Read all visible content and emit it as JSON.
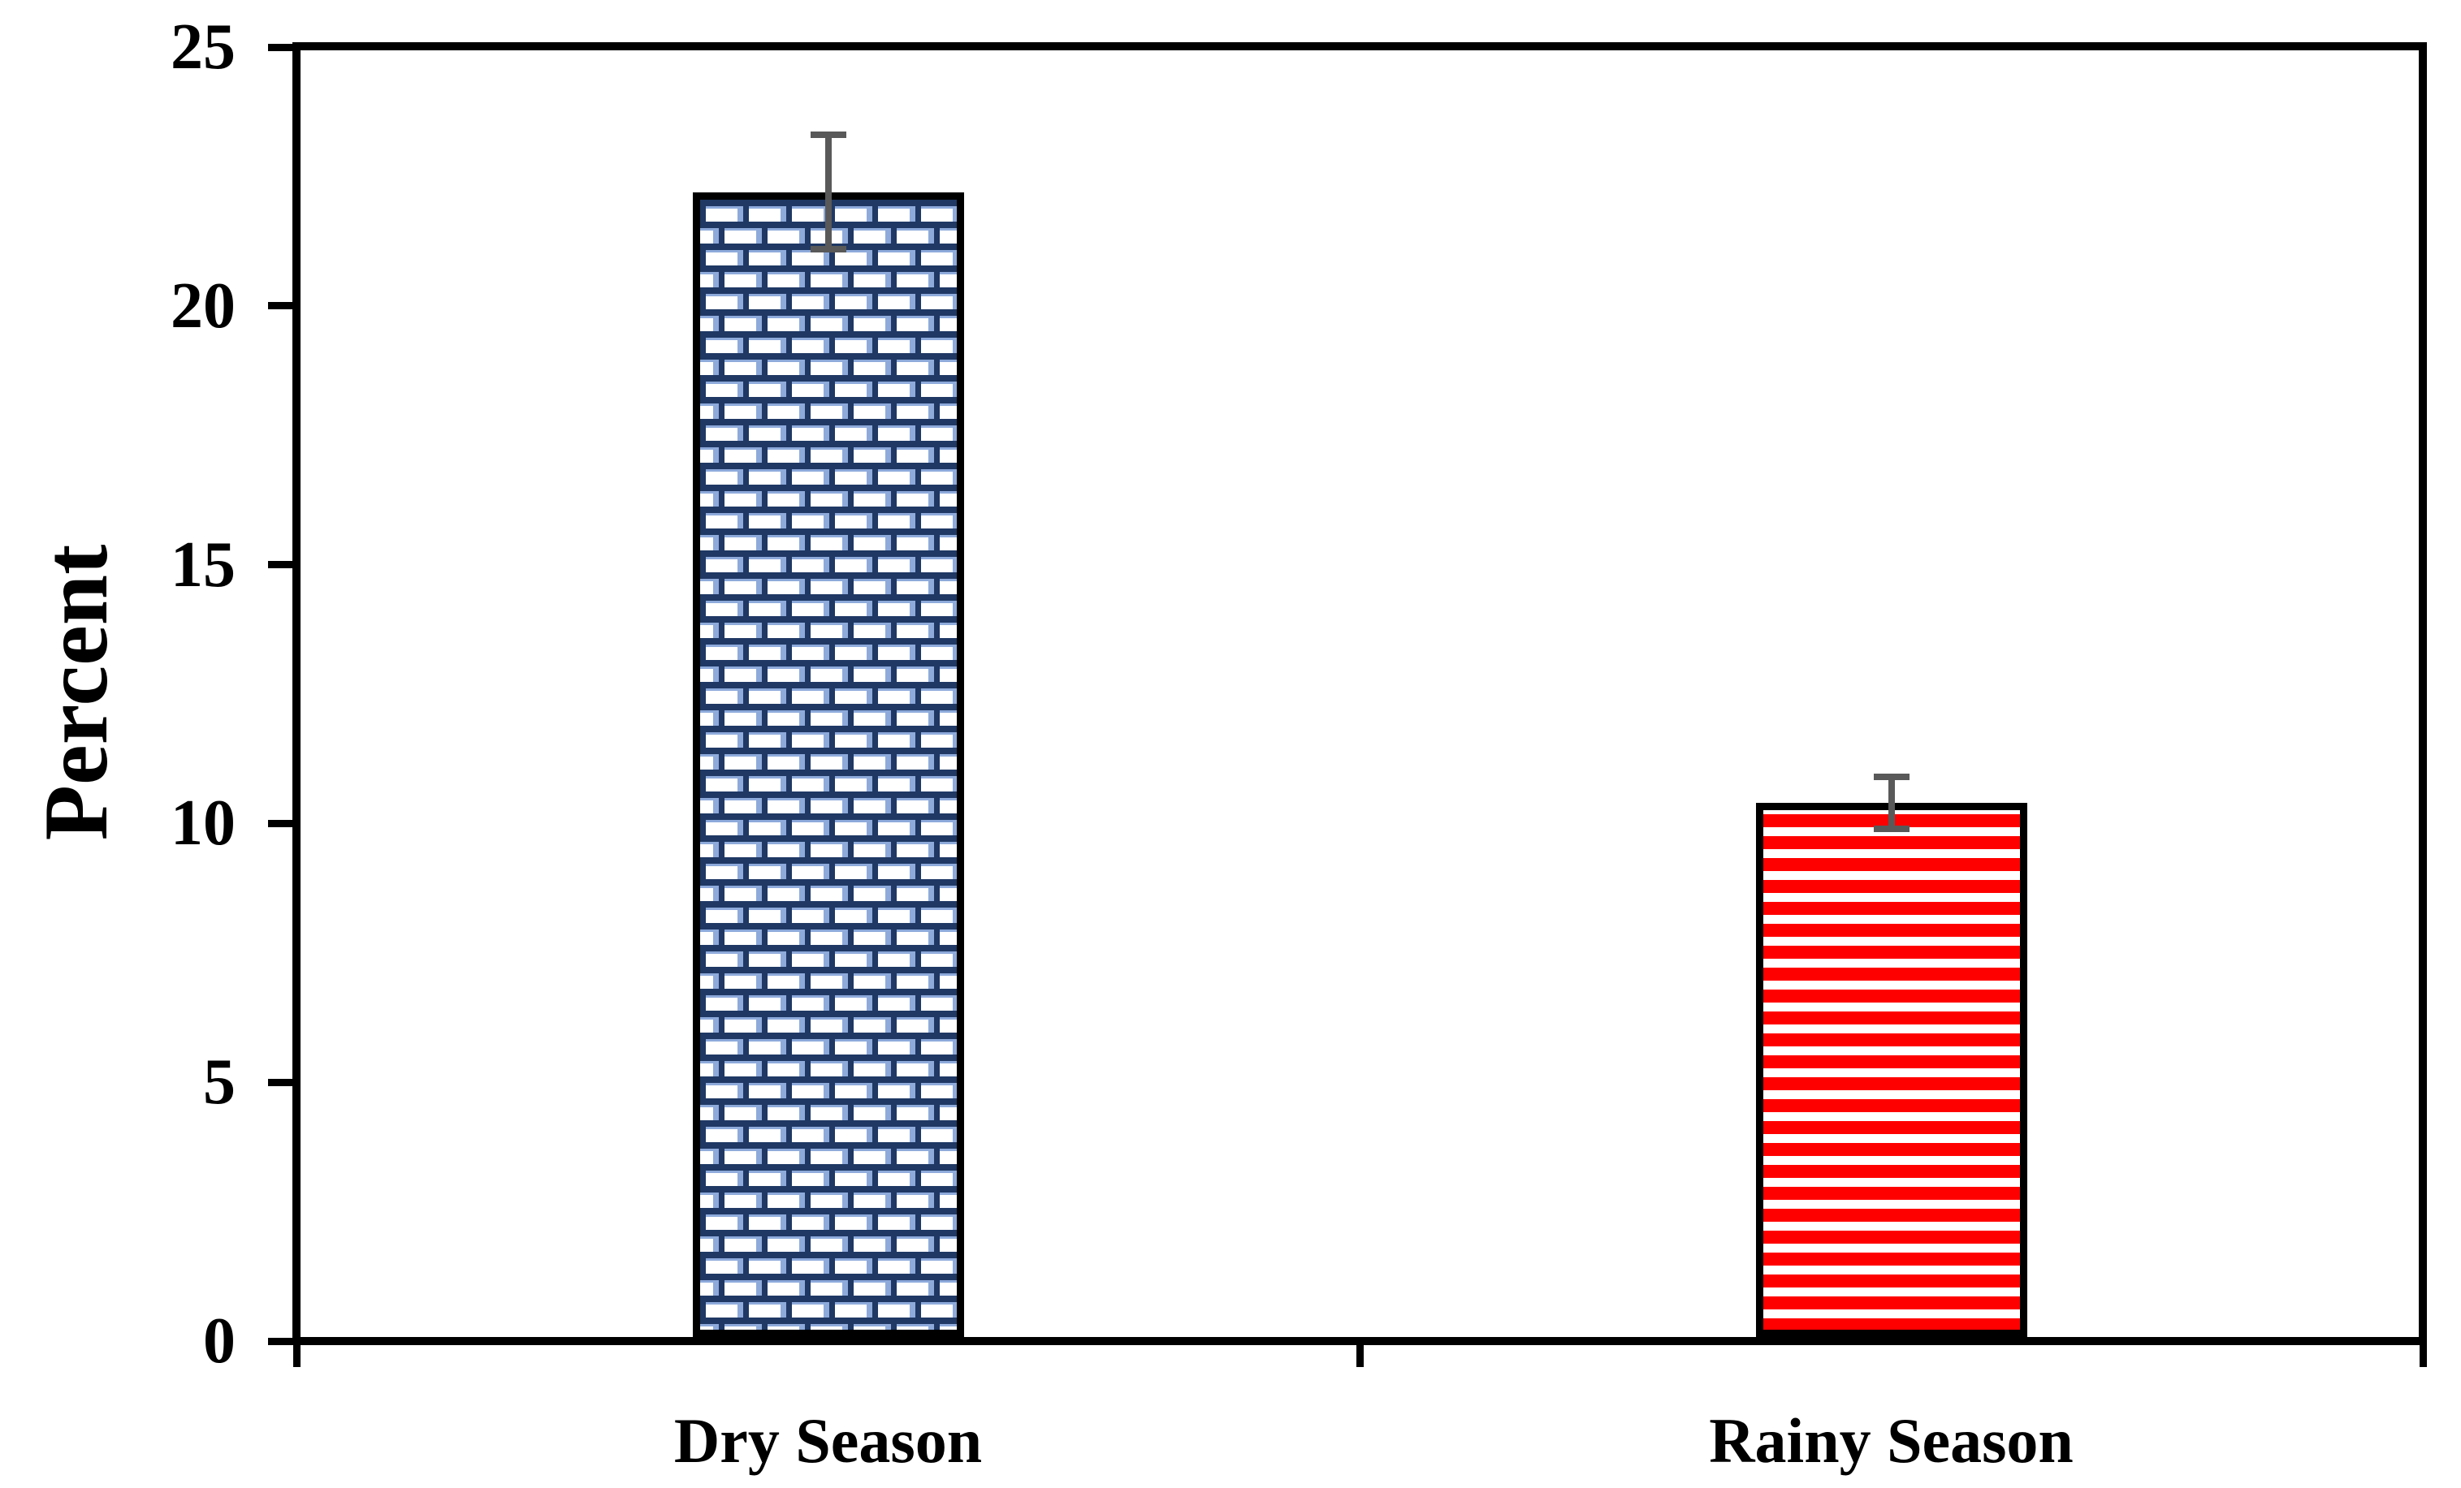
{
  "chart_data": {
    "type": "bar",
    "title": "",
    "xlabel": "",
    "ylabel": "Percent",
    "ylim": [
      0,
      25
    ],
    "yticks": [
      0,
      5,
      10,
      15,
      20,
      25
    ],
    "categories": [
      "Dry Season",
      "Rainy Season"
    ],
    "series": [
      {
        "name": "Percent",
        "values": [
          22.2,
          10.4
        ],
        "errors": [
          1.1,
          0.5
        ]
      }
    ],
    "grid": false,
    "legend": null,
    "background": "#ffffff",
    "axis_color": "#000000",
    "error_bar_color": "#595959",
    "bar_styles": [
      {
        "pattern": "brick",
        "color": "#1F3864",
        "accent": "#8EAADB",
        "fill_background": "#ffffff"
      },
      {
        "pattern": "horizontal-stripes",
        "color": "#FF0000",
        "fill_background": "#ffffff"
      }
    ]
  }
}
